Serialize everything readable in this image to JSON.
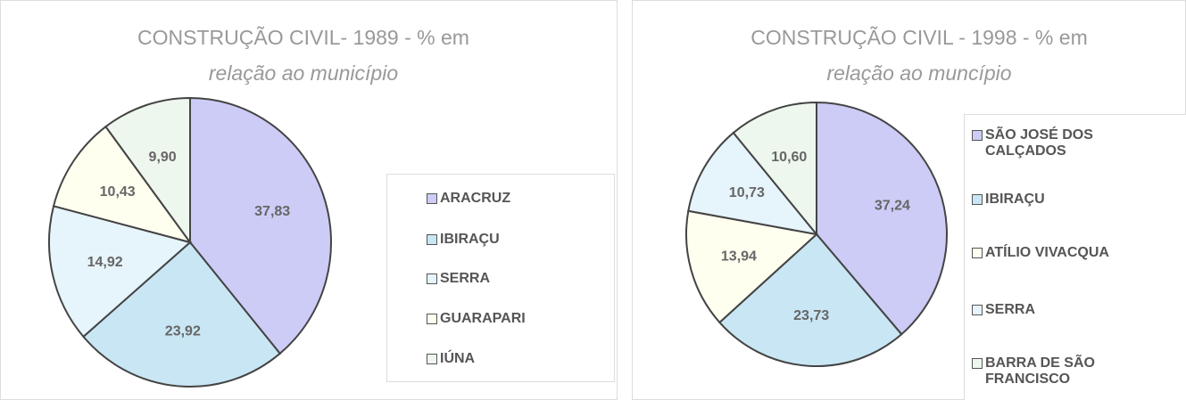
{
  "chart_data": [
    {
      "type": "pie",
      "title": [
        "CONSTRUÇÃO CIVIL- 1989 - % em",
        "relação ao município"
      ],
      "categories": [
        "ARACRUZ",
        "IBIRAÇU",
        "SERRA",
        "GUARAPARI",
        "IÚNA"
      ],
      "values": [
        37.83,
        23.92,
        14.92,
        10.43,
        9.9
      ],
      "value_labels": [
        "37,83",
        "23,92",
        "14,92",
        "10,43",
        "9,90"
      ],
      "colors": [
        "#ccccf6",
        "#c9e6f4",
        "#e6f4fb",
        "#fffff0",
        "#eef7ee"
      ]
    },
    {
      "type": "pie",
      "title": [
        "CONSTRUÇÃO CIVIL - 1998 - % em",
        "relação ao muncípio"
      ],
      "categories": [
        "SÃO JOSÉ DOS CALÇADOS",
        "IBIRAÇU",
        "ATÍLIO VIVACQUA",
        "SERRA",
        "BARRA DE SÃO FRANCISCO"
      ],
      "values": [
        37.24,
        23.73,
        13.94,
        10.73,
        10.6
      ],
      "value_labels": [
        "37,24",
        "23,73",
        "13,94",
        "10,73",
        "10,60"
      ],
      "colors": [
        "#ccccf6",
        "#c9e6f4",
        "#fffff0",
        "#e6f4fb",
        "#eef7ee"
      ]
    }
  ]
}
